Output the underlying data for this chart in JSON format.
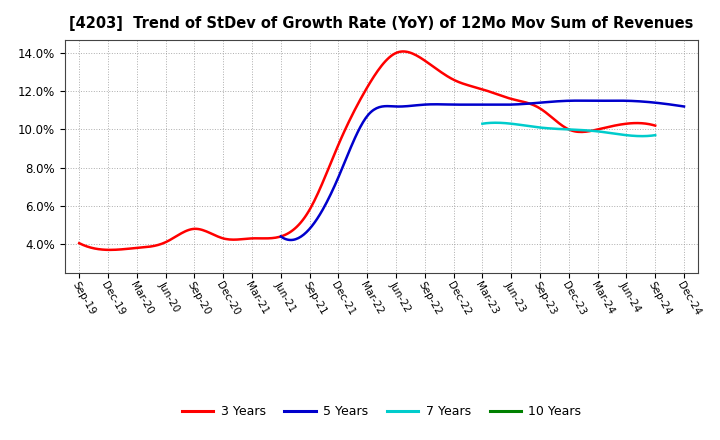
{
  "title": "[4203]  Trend of StDev of Growth Rate (YoY) of 12Mo Mov Sum of Revenues",
  "x_labels": [
    "Sep-19",
    "Dec-19",
    "Mar-20",
    "Jun-20",
    "Sep-20",
    "Dec-20",
    "Mar-21",
    "Jun-21",
    "Sep-21",
    "Dec-21",
    "Mar-22",
    "Jun-22",
    "Sep-22",
    "Dec-22",
    "Mar-23",
    "Jun-23",
    "Sep-23",
    "Dec-23",
    "Mar-24",
    "Jun-24",
    "Sep-24",
    "Dec-24"
  ],
  "ylim": [
    0.025,
    0.147
  ],
  "yticks": [
    0.04,
    0.06,
    0.08,
    0.1,
    0.12,
    0.14
  ],
  "series": {
    "3 Years": {
      "color": "#FF0000",
      "linewidth": 1.8,
      "data_x": [
        0,
        1,
        2,
        3,
        4,
        5,
        6,
        7,
        8,
        9,
        10,
        11,
        12,
        13,
        14,
        15,
        16,
        17,
        18,
        19,
        20
      ],
      "data_y": [
        0.0405,
        0.037,
        0.038,
        0.041,
        0.048,
        0.043,
        0.043,
        0.044,
        0.058,
        0.092,
        0.122,
        0.14,
        0.136,
        0.126,
        0.121,
        0.116,
        0.111,
        0.1,
        0.1,
        0.103,
        0.102
      ]
    },
    "5 Years": {
      "color": "#0000CC",
      "linewidth": 1.8,
      "data_x": [
        7,
        8,
        9,
        10,
        11,
        12,
        13,
        14,
        15,
        16,
        17,
        18,
        19,
        20,
        21
      ],
      "data_y": [
        0.044,
        0.048,
        0.075,
        0.107,
        0.112,
        0.113,
        0.113,
        0.113,
        0.113,
        0.114,
        0.115,
        0.115,
        0.115,
        0.114,
        0.112
      ]
    },
    "7 Years": {
      "color": "#00CCCC",
      "linewidth": 1.8,
      "data_x": [
        14,
        15,
        16,
        17,
        18,
        19,
        20
      ],
      "data_y": [
        0.103,
        0.103,
        0.101,
        0.1,
        0.099,
        0.097,
        0.097
      ]
    },
    "10 Years": {
      "color": "#008000",
      "linewidth": 1.8,
      "data_x": [],
      "data_y": []
    }
  },
  "legend_labels": [
    "3 Years",
    "5 Years",
    "7 Years",
    "10 Years"
  ],
  "legend_colors": [
    "#FF0000",
    "#0000CC",
    "#00CCCC",
    "#008000"
  ],
  "background_color": "#FFFFFF",
  "grid_color": "#999999"
}
